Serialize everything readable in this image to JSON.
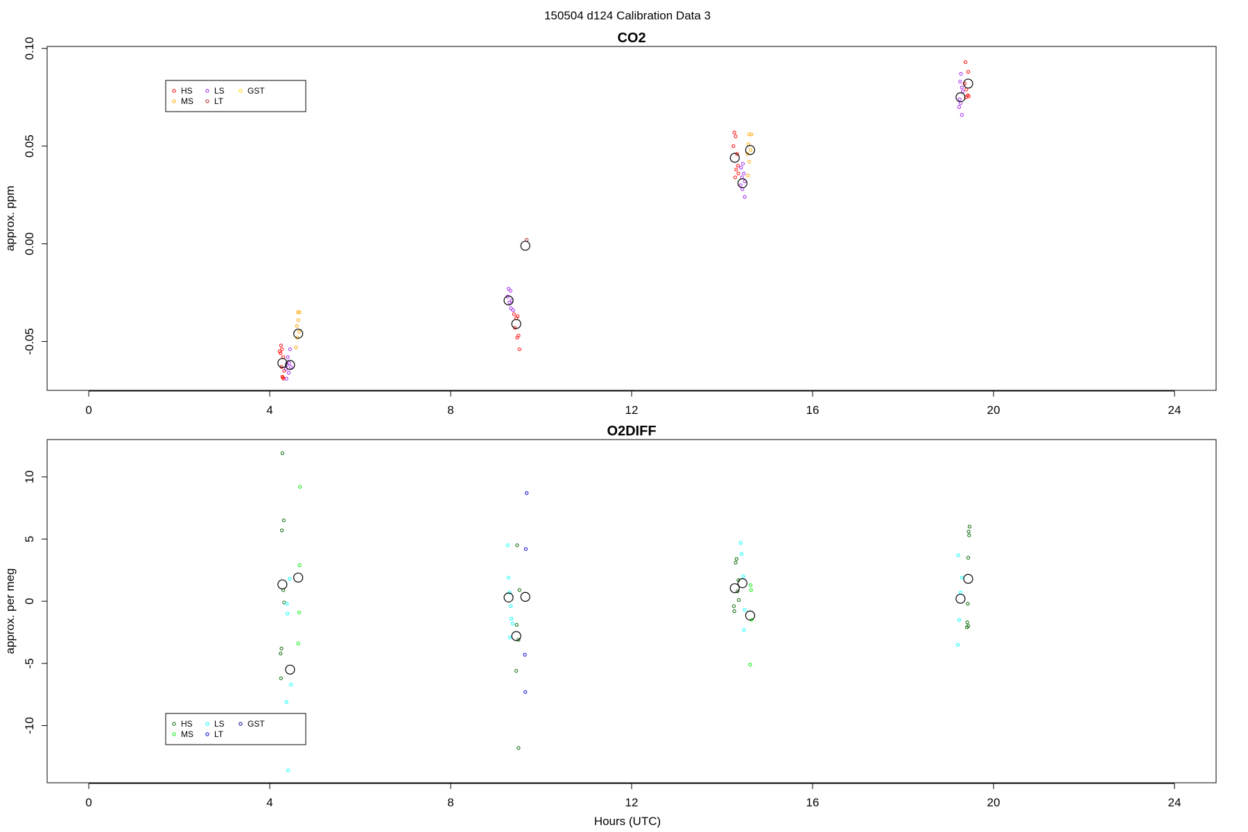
{
  "header": {
    "title": "150504   d124   Calibration Data 3"
  },
  "xaxis": {
    "label": "Hours (UTC)",
    "ticks": [
      0,
      4,
      8,
      12,
      16,
      20,
      24
    ],
    "xlim": [
      -0.92,
      24.92
    ]
  },
  "chart_data": [
    {
      "type": "scatter",
      "title": "CO2",
      "ylabel": "approx. ppm",
      "ylim": [
        -0.075,
        0.101
      ],
      "yticks": [
        -0.05,
        0.0,
        0.05,
        0.1
      ],
      "ytick_labels": [
        "-0.05",
        "0.00",
        "0.05",
        "0.10"
      ],
      "legend": {
        "position": "top-left",
        "columns": 3
      },
      "series": [
        {
          "name": "HS",
          "color": "#ff0000",
          "points": [
            [
              4.25,
              -0.052
            ],
            [
              4.22,
              -0.055
            ],
            [
              4.27,
              -0.054
            ],
            [
              4.24,
              -0.056
            ],
            [
              4.3,
              -0.058
            ],
            [
              4.26,
              -0.063
            ],
            [
              4.32,
              -0.065
            ],
            [
              4.28,
              -0.068
            ],
            [
              4.31,
              -0.069
            ],
            [
              4.29,
              -0.0685
            ],
            [
              9.4,
              -0.036
            ],
            [
              9.45,
              -0.038
            ],
            [
              9.48,
              -0.037
            ],
            [
              9.42,
              -0.043
            ],
            [
              9.5,
              -0.047
            ],
            [
              9.47,
              -0.048
            ],
            [
              9.52,
              -0.054
            ],
            [
              14.27,
              0.057
            ],
            [
              14.3,
              0.055
            ],
            [
              14.25,
              0.05
            ],
            [
              14.33,
              0.046
            ],
            [
              14.35,
              0.04
            ],
            [
              14.31,
              0.038
            ],
            [
              14.36,
              0.036
            ],
            [
              14.29,
              0.034
            ],
            [
              19.38,
              0.093
            ],
            [
              19.44,
              0.088
            ],
            [
              19.36,
              0.082
            ],
            [
              19.4,
              0.079
            ],
            [
              19.43,
              0.076
            ],
            [
              19.39,
              0.075
            ],
            [
              19.45,
              0.0755
            ]
          ]
        },
        {
          "name": "MS",
          "color": "#ffa500",
          "points": [
            [
              4.62,
              -0.035
            ],
            [
              4.66,
              -0.035
            ],
            [
              4.63,
              -0.039
            ],
            [
              4.6,
              -0.042
            ],
            [
              4.65,
              -0.045
            ],
            [
              4.61,
              -0.048
            ],
            [
              4.58,
              -0.053
            ],
            [
              14.6,
              0.056
            ],
            [
              14.65,
              0.056
            ],
            [
              14.58,
              0.051
            ],
            [
              14.63,
              0.048
            ],
            [
              14.56,
              0.046
            ],
            [
              14.6,
              0.042
            ],
            [
              14.57,
              0.035
            ]
          ]
        },
        {
          "name": "LS",
          "color": "#a020f0",
          "points": [
            [
              4.45,
              -0.054
            ],
            [
              4.4,
              -0.058
            ],
            [
              4.43,
              -0.061
            ],
            [
              4.38,
              -0.062
            ],
            [
              4.47,
              -0.063
            ],
            [
              4.36,
              -0.064
            ],
            [
              4.42,
              -0.066
            ],
            [
              4.37,
              -0.069
            ],
            [
              9.28,
              -0.023
            ],
            [
              9.32,
              -0.024
            ],
            [
              9.26,
              -0.027
            ],
            [
              9.35,
              -0.029
            ],
            [
              9.3,
              -0.03
            ],
            [
              9.33,
              -0.033
            ],
            [
              9.38,
              -0.034
            ],
            [
              14.46,
              0.041
            ],
            [
              14.42,
              0.039
            ],
            [
              14.48,
              0.036
            ],
            [
              14.44,
              0.034
            ],
            [
              14.5,
              0.032
            ],
            [
              14.41,
              0.03
            ],
            [
              14.45,
              0.028
            ],
            [
              14.5,
              0.024
            ],
            [
              19.28,
              0.087
            ],
            [
              19.26,
              0.083
            ],
            [
              19.3,
              0.08
            ],
            [
              19.32,
              0.078
            ],
            [
              19.25,
              0.074
            ],
            [
              19.27,
              0.072
            ],
            [
              19.24,
              0.07
            ],
            [
              19.3,
              0.066
            ]
          ]
        },
        {
          "name": "LT",
          "color": "#b22222",
          "points": [
            [
              9.68,
              0.002
            ]
          ]
        },
        {
          "name": "GST",
          "color": "#ffd700",
          "points": []
        }
      ],
      "means": {
        "color": "#000000",
        "points": [
          [
            4.28,
            -0.061
          ],
          [
            4.45,
            -0.062
          ],
          [
            4.63,
            -0.046
          ],
          [
            9.28,
            -0.029
          ],
          [
            9.45,
            -0.041
          ],
          [
            9.65,
            -0.001
          ],
          [
            14.28,
            0.044
          ],
          [
            14.45,
            0.031
          ],
          [
            14.62,
            0.048
          ],
          [
            19.27,
            0.075
          ],
          [
            19.44,
            0.082
          ]
        ]
      }
    },
    {
      "type": "scatter",
      "title": "O2DIFF",
      "ylabel": "approx. per meg",
      "ylim": [
        -14.6,
        13.0
      ],
      "yticks": [
        -10,
        -5,
        0,
        5,
        10
      ],
      "ytick_labels": [
        "-10",
        "-5",
        "0",
        "5",
        "10"
      ],
      "legend": {
        "position": "bottom-left",
        "columns": 3
      },
      "series": [
        {
          "name": "HS",
          "color": "#006400",
          "points": [
            [
              4.28,
              11.9
            ],
            [
              4.31,
              6.5
            ],
            [
              4.27,
              5.7
            ],
            [
              4.3,
              0.9
            ],
            [
              4.32,
              -0.1
            ],
            [
              4.26,
              -3.8
            ],
            [
              4.24,
              -4.2
            ],
            [
              4.25,
              -6.2
            ],
            [
              9.47,
              4.5
            ],
            [
              9.52,
              0.9
            ],
            [
              9.46,
              -1.9
            ],
            [
              9.5,
              -3.1
            ],
            [
              9.45,
              -5.6
            ],
            [
              9.5,
              -11.8
            ],
            [
              14.32,
              3.4
            ],
            [
              14.3,
              3.1
            ],
            [
              14.36,
              1.7
            ],
            [
              14.34,
              0.8
            ],
            [
              14.37,
              0.1
            ],
            [
              14.26,
              -0.4
            ],
            [
              14.27,
              -0.8
            ],
            [
              19.47,
              6.0
            ],
            [
              19.45,
              5.6
            ],
            [
              19.46,
              5.3
            ],
            [
              19.44,
              3.5
            ],
            [
              19.43,
              -0.2
            ],
            [
              19.42,
              -1.7
            ],
            [
              19.41,
              -2.1
            ],
            [
              19.44,
              -2.0
            ]
          ]
        },
        {
          "name": "MS",
          "color": "#00ee00",
          "points": [
            [
              4.67,
              9.2
            ],
            [
              4.66,
              2.9
            ],
            [
              4.65,
              -0.9
            ],
            [
              4.63,
              -3.4
            ]
          ]
        },
        {
          "name": "LS",
          "color": "#00ffff",
          "points": [
            [
              4.44,
              1.8
            ],
            [
              4.38,
              -0.2
            ],
            [
              4.39,
              -1.0
            ],
            [
              4.47,
              -6.7
            ],
            [
              4.37,
              -8.1
            ],
            [
              4.41,
              -13.6
            ],
            [
              9.26,
              4.5
            ],
            [
              9.28,
              1.9
            ],
            [
              9.3,
              0.7
            ],
            [
              9.33,
              -0.4
            ],
            [
              9.34,
              -1.4
            ],
            [
              9.37,
              -1.8
            ],
            [
              9.31,
              -2.9
            ],
            [
              14.41,
              4.7
            ],
            [
              14.43,
              3.8
            ],
            [
              14.47,
              2.0
            ],
            [
              14.5,
              -0.7
            ],
            [
              14.48,
              -2.3
            ],
            [
              19.22,
              3.7
            ],
            [
              19.27,
              0.7
            ],
            [
              19.24,
              -1.5
            ],
            [
              19.21,
              -3.5
            ],
            [
              19.3,
              1.9
            ]
          ]
        },
        {
          "name": "LT",
          "color": "#0000cd",
          "points": [
            [
              9.68,
              8.7
            ],
            [
              9.66,
              4.2
            ],
            [
              9.64,
              -4.3
            ],
            [
              9.65,
              -7.3
            ]
          ]
        },
        {
          "name": "GST",
          "color": "#00008b",
          "points": []
        }
      ],
      "extra_points": {
        "color": "#00ee00",
        "points": [
          [
            14.63,
            1.3
          ],
          [
            14.64,
            0.9
          ],
          [
            14.65,
            -1.5
          ],
          [
            14.62,
            -5.1
          ]
        ]
      },
      "means": {
        "color": "#000000",
        "points": [
          [
            4.28,
            1.35
          ],
          [
            4.45,
            -5.5
          ],
          [
            4.63,
            1.9
          ],
          [
            9.28,
            0.3
          ],
          [
            9.45,
            -2.8
          ],
          [
            9.65,
            0.35
          ],
          [
            14.28,
            1.05
          ],
          [
            14.45,
            1.45
          ],
          [
            14.62,
            -1.15
          ],
          [
            19.27,
            0.2
          ],
          [
            19.44,
            1.8
          ]
        ]
      }
    }
  ]
}
